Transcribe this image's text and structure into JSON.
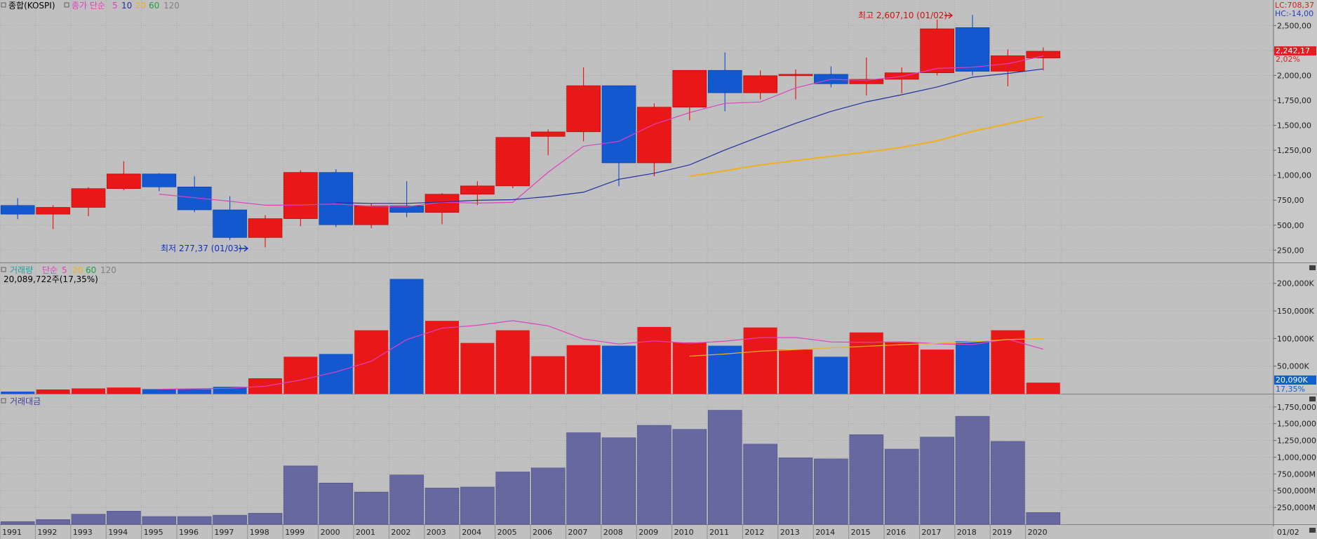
{
  "main_panel": {
    "title": "종합(KOSPI)",
    "indicator_label": "종가 단순",
    "ma_periods": [
      "5",
      "10",
      "20",
      "60",
      "120"
    ],
    "colors": {
      "ma5": "#e040c0",
      "ma10": "#2030a0",
      "ma20": "#f0b020",
      "ma60": "#20a040",
      "ma120": "#808080"
    },
    "lc_label": "LC:708,37",
    "hc_label": "HC:-14,00",
    "current_price": "2,242,17",
    "current_change": "2,02%",
    "high_annotation": "최고 2,607,10 (01/02)",
    "low_annotation": "최저 277,37 (01/03)",
    "y_ticks": [
      "2,500,00",
      "2,250,00",
      "2,000,00",
      "1,750,00",
      "1,500,00",
      "1,250,00",
      "1,000,00",
      "750,00",
      "500,00",
      "250,00"
    ]
  },
  "volume_panel": {
    "title": "거래량",
    "indicator_label": "단순",
    "ma_periods": [
      "5",
      "20",
      "60",
      "120"
    ],
    "info": "20,089,722주(17,35%)",
    "current_value": "20,090K",
    "current_pct": "17,35%",
    "y_ticks": [
      "200,000K",
      "150,000K",
      "100,000K",
      "50,000K"
    ]
  },
  "amount_panel": {
    "title": "거래대금",
    "y_ticks": [
      "1,750,000M",
      "1,500,000M",
      "1,250,000M",
      "1,000,000M",
      "750,000M",
      "500,000M",
      "250,000M"
    ]
  },
  "x_axis": {
    "labels": [
      "1991",
      "1992",
      "1993",
      "1994",
      "1995",
      "1996",
      "1997",
      "1998",
      "1999",
      "2000",
      "2001",
      "2002",
      "2003",
      "2004",
      "2005",
      "2006",
      "2007",
      "2008",
      "2009",
      "2010",
      "2011",
      "2012",
      "2013",
      "2014",
      "2015",
      "2016",
      "2017",
      "2018",
      "2019",
      "2020"
    ],
    "end_label": "01/02"
  },
  "chart_data": [
    {
      "type": "candlestick",
      "title": "종합(KOSPI)",
      "categories": [
        "1991",
        "1992",
        "1993",
        "1994",
        "1995",
        "1996",
        "1997",
        "1998",
        "1999",
        "2000",
        "2001",
        "2002",
        "2003",
        "2004",
        "2005",
        "2006",
        "2007",
        "2008",
        "2009",
        "2010",
        "2011",
        "2012",
        "2013",
        "2014",
        "2015",
        "2016",
        "2017",
        "2018",
        "2019",
        "2020"
      ],
      "open": [
        697,
        610,
        678,
        866,
        1013,
        883,
        653,
        376,
        565,
        1028,
        504,
        694,
        628,
        810,
        893,
        1389,
        1435,
        1897,
        1124,
        1682,
        2051,
        1826,
        1997,
        2011,
        1916,
        1961,
        2026,
        2479,
        2042,
        2175
      ],
      "high": [
        770,
        700,
        880,
        1140,
        1020,
        990,
        790,
        600,
        1050,
        1060,
        720,
        940,
        820,
        940,
        1380,
        1460,
        2080,
        1900,
        1720,
        2050,
        2230,
        2050,
        2060,
        2090,
        2180,
        2080,
        2560,
        2607,
        2260,
        2280
      ],
      "low": [
        560,
        460,
        590,
        850,
        840,
        630,
        350,
        277,
        490,
        480,
        470,
        580,
        510,
        700,
        870,
        1200,
        1340,
        890,
        990,
        1550,
        1640,
        1760,
        1760,
        1880,
        1800,
        1820,
        2000,
        2000,
        1890,
        2050
      ],
      "close": [
        610,
        678,
        866,
        1013,
        883,
        653,
        376,
        565,
        1028,
        504,
        694,
        628,
        810,
        893,
        1379,
        1434,
        1897,
        1124,
        1682,
        2051,
        1826,
        1997,
        2011,
        1916,
        1961,
        2026,
        2467,
        2041,
        2197,
        2242
      ],
      "series": [
        {
          "name": "5",
          "values": [
            null,
            null,
            null,
            null,
            811,
            775,
            739,
            700,
            702,
            712,
            689,
            685,
            729,
            721,
            728,
            1030,
            1290,
            1340,
            1511,
            1628,
            1720,
            1734,
            1875,
            1960,
            1952,
            1990,
            2070,
            2082,
            2118,
            2195
          ]
        },
        {
          "name": "10",
          "values": [
            null,
            null,
            null,
            null,
            null,
            null,
            null,
            null,
            null,
            725,
            718,
            718,
            732,
            749,
            755,
            786,
            830,
            960,
            1020,
            1104,
            1253,
            1389,
            1520,
            1640,
            1735,
            1806,
            1884,
            1982,
            2020,
            2065
          ]
        },
        {
          "name": "20",
          "values": [
            null,
            null,
            null,
            null,
            null,
            null,
            null,
            null,
            null,
            null,
            null,
            null,
            null,
            null,
            null,
            null,
            null,
            null,
            null,
            990,
            1045,
            1103,
            1147,
            1190,
            1231,
            1280,
            1345,
            1440,
            1515,
            1590
          ]
        }
      ],
      "ylim": [
        140,
        2650
      ]
    },
    {
      "type": "bar",
      "title": "거래량",
      "categories": [
        "1991",
        "1992",
        "1993",
        "1994",
        "1995",
        "1996",
        "1997",
        "1998",
        "1999",
        "2000",
        "2001",
        "2002",
        "2003",
        "2004",
        "2005",
        "2006",
        "2007",
        "2008",
        "2009",
        "2010",
        "2011",
        "2012",
        "2013",
        "2014",
        "2015",
        "2016",
        "2017",
        "2018",
        "2019",
        "2020"
      ],
      "values": [
        3900,
        7700,
        9600,
        11200,
        8300,
        8200,
        12500,
        28000,
        67000,
        72000,
        115000,
        208000,
        132000,
        92000,
        115000,
        68000,
        88000,
        87000,
        121000,
        93000,
        87000,
        120000,
        80000,
        67000,
        111000,
        93000,
        80000,
        95000,
        115000,
        20090
      ],
      "series": [
        {
          "name": "5",
          "values": [
            null,
            null,
            null,
            null,
            8100,
            9000,
            9900,
            13600,
            24800,
            39500,
            58900,
            98000,
            118800,
            124000,
            132400,
            123000,
            99000,
            90000,
            95800,
            91400,
            95200,
            101600,
            102000,
            93800,
            93000,
            94300,
            90400,
            89200,
            98800,
            80600
          ]
        },
        {
          "name": "20",
          "values": [
            null,
            null,
            null,
            null,
            null,
            null,
            null,
            null,
            null,
            null,
            null,
            null,
            null,
            null,
            null,
            null,
            null,
            null,
            null,
            68000,
            72000,
            77000,
            80000,
            83000,
            86000,
            89000,
            91000,
            94000,
            98000,
            100000
          ]
        }
      ],
      "ylim": [
        0,
        220000
      ]
    },
    {
      "type": "bar",
      "title": "거래대금",
      "categories": [
        "1991",
        "1992",
        "1993",
        "1994",
        "1995",
        "1996",
        "1997",
        "1998",
        "1999",
        "2000",
        "2001",
        "2002",
        "2003",
        "2004",
        "2005",
        "2006",
        "2007",
        "2008",
        "2009",
        "2010",
        "2011",
        "2012",
        "2013",
        "2014",
        "2015",
        "2016",
        "2017",
        "2018",
        "2019",
        "2020"
      ],
      "values": [
        40000,
        70000,
        150000,
        195000,
        115000,
        115000,
        135000,
        165000,
        870000,
        615000,
        480000,
        735000,
        540000,
        555000,
        780000,
        840000,
        1365000,
        1290000,
        1475000,
        1415000,
        1700000,
        1195000,
        990000,
        975000,
        1335000,
        1120000,
        1300000,
        1610000,
        1235000,
        175000
      ],
      "ylim": [
        0,
        1800000
      ]
    }
  ]
}
